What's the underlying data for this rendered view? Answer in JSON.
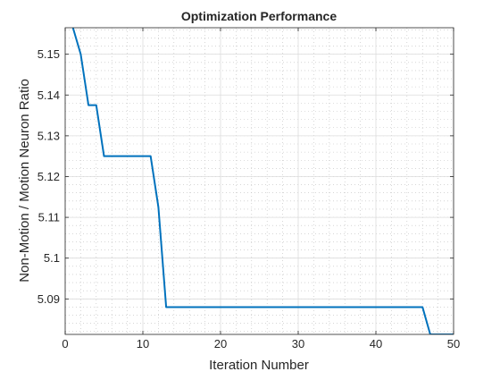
{
  "chart_data": {
    "type": "line",
    "title": "Optimization Performance",
    "xlabel": "Iteration Number",
    "ylabel": "Non-Motion / Motion Neuron Ratio",
    "xlim": [
      0,
      50
    ],
    "ylim": [
      5.0813,
      5.1565
    ],
    "xticks": [
      0,
      10,
      20,
      30,
      40,
      50
    ],
    "xtick_labels": [
      "0",
      "10",
      "20",
      "30",
      "40",
      "50"
    ],
    "yticks": [
      5.09,
      5.1,
      5.11,
      5.12,
      5.13,
      5.14,
      5.15
    ],
    "ytick_labels": [
      "5.09",
      "5.1",
      "5.11",
      "5.12",
      "5.13",
      "5.14",
      "5.15"
    ],
    "grid": true,
    "minor_grid": true,
    "series": [
      {
        "color": "#0072BD",
        "x": [
          1,
          2,
          3,
          4,
          5,
          6,
          7,
          8,
          9,
          10,
          11,
          12,
          13,
          14,
          15,
          16,
          17,
          18,
          19,
          20,
          21,
          22,
          23,
          24,
          25,
          26,
          27,
          28,
          29,
          30,
          31,
          32,
          33,
          34,
          35,
          36,
          37,
          38,
          39,
          40,
          41,
          42,
          43,
          44,
          45,
          46,
          47,
          48,
          49,
          50
        ],
        "y": [
          5.1565,
          5.15,
          5.1375,
          5.1375,
          5.125,
          5.125,
          5.125,
          5.125,
          5.125,
          5.125,
          5.125,
          5.1125,
          5.088,
          5.088,
          5.088,
          5.088,
          5.088,
          5.088,
          5.088,
          5.088,
          5.088,
          5.088,
          5.088,
          5.088,
          5.088,
          5.088,
          5.088,
          5.088,
          5.088,
          5.088,
          5.088,
          5.088,
          5.088,
          5.088,
          5.088,
          5.088,
          5.088,
          5.088,
          5.088,
          5.088,
          5.088,
          5.088,
          5.088,
          5.088,
          5.088,
          5.088,
          5.0813,
          5.0813,
          5.0813,
          5.0813
        ]
      }
    ]
  }
}
